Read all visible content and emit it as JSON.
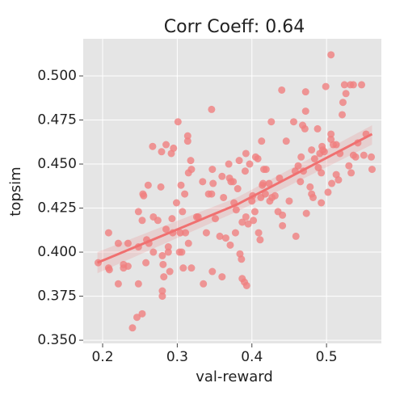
{
  "chart_data": {
    "type": "scatter",
    "title": "Corr Coeff: 0.64",
    "x_label": "val-reward",
    "y_label": "topsim",
    "xlim": [
      0.174,
      0.5735
    ],
    "ylim": [
      0.3482,
      0.5211
    ],
    "xticks": [
      0.2,
      0.3,
      0.4,
      0.5
    ],
    "yticks": [
      {
        "value": 0.35,
        "label": "0.350"
      },
      {
        "value": 0.375,
        "label": "0.375"
      },
      {
        "value": 0.4,
        "label": "0.400"
      },
      {
        "value": 0.425,
        "label": "0.425"
      },
      {
        "value": 0.45,
        "label": "0.450"
      },
      {
        "value": 0.475,
        "label": "0.475"
      },
      {
        "value": 0.5,
        "label": "0.500"
      }
    ],
    "grid": true,
    "background": "#e5e5e5",
    "color": "#f08080",
    "x": [
      0.194,
      0.208,
      0.208,
      0.209,
      0.221,
      0.221,
      0.228,
      0.228,
      0.234,
      0.234,
      0.24,
      0.246,
      0.253,
      0.248,
      0.248,
      0.248,
      0.253,
      0.254,
      0.255,
      0.258,
      0.259,
      0.261,
      0.262,
      0.267,
      0.268,
      0.268,
      0.274,
      0.278,
      0.279,
      0.28,
      0.28,
      0.28,
      0.281,
      0.282,
      0.285,
      0.285,
      0.288,
      0.288,
      0.29,
      0.292,
      0.293,
      0.295,
      0.294,
      0.299,
      0.301,
      0.303,
      0.304,
      0.305,
      0.306,
      0.307,
      0.308,
      0.31,
      0.311,
      0.314,
      0.314,
      0.315,
      0.315,
      0.318,
      0.319,
      0.319,
      0.326,
      0.328,
      0.334,
      0.335,
      0.339,
      0.342,
      0.346,
      0.346,
      0.347,
      0.347,
      0.348,
      0.351,
      0.357,
      0.36,
      0.36,
      0.362,
      0.365,
      0.369,
      0.37,
      0.371,
      0.372,
      0.375,
      0.376,
      0.378,
      0.379,
      0.381,
      0.383,
      0.384,
      0.386,
      0.387,
      0.387,
      0.39,
      0.391,
      0.392,
      0.392,
      0.393,
      0.395,
      0.397,
      0.4,
      0.401,
      0.402,
      0.404,
      0.405,
      0.408,
      0.409,
      0.411,
      0.412,
      0.413,
      0.414,
      0.415,
      0.416,
      0.418,
      0.419,
      0.423,
      0.424,
      0.426,
      0.427,
      0.431,
      0.435,
      0.437,
      0.44,
      0.441,
      0.441,
      0.446,
      0.45,
      0.456,
      0.458,
      0.459,
      0.462,
      0.465,
      0.466,
      0.468,
      0.469,
      0.471,
      0.472,
      0.472,
      0.473,
      0.478,
      0.48,
      0.48,
      0.482,
      0.484,
      0.488,
      0.489,
      0.491,
      0.493,
      0.493,
      0.494,
      0.495,
      0.497,
      0.499,
      0.502,
      0.506,
      0.506,
      0.507,
      0.509,
      0.513,
      0.513,
      0.516,
      0.518,
      0.521,
      0.522,
      0.524,
      0.526,
      0.53,
      0.532,
      0.533,
      0.536,
      0.536,
      0.539,
      0.542,
      0.547,
      0.55,
      0.553,
      0.56,
      0.561,
      0.506
    ],
    "values": [
      0.394,
      0.411,
      0.391,
      0.39,
      0.405,
      0.382,
      0.393,
      0.391,
      0.392,
      0.405,
      0.357,
      0.363,
      0.365,
      0.382,
      0.403,
      0.423,
      0.418,
      0.433,
      0.432,
      0.394,
      0.407,
      0.438,
      0.405,
      0.46,
      0.42,
      0.4,
      0.418,
      0.437,
      0.457,
      0.398,
      0.378,
      0.375,
      0.393,
      0.386,
      0.413,
      0.461,
      0.403,
      0.4,
      0.389,
      0.456,
      0.419,
      0.459,
      0.411,
      0.428,
      0.474,
      0.4,
      0.411,
      0.438,
      0.4,
      0.423,
      0.391,
      0.433,
      0.411,
      0.466,
      0.463,
      0.445,
      0.405,
      0.452,
      0.391,
      0.447,
      0.42,
      0.42,
      0.44,
      0.382,
      0.411,
      0.433,
      0.481,
      0.433,
      0.389,
      0.447,
      0.439,
      0.419,
      0.409,
      0.443,
      0.386,
      0.431,
      0.408,
      0.45,
      0.442,
      0.404,
      0.44,
      0.44,
      0.428,
      0.411,
      0.424,
      0.436,
      0.452,
      0.399,
      0.396,
      0.417,
      0.385,
      0.383,
      0.446,
      0.456,
      0.42,
      0.381,
      0.416,
      0.45,
      0.429,
      0.432,
      0.418,
      0.423,
      0.454,
      0.453,
      0.411,
      0.407,
      0.431,
      0.463,
      0.438,
      0.439,
      0.447,
      0.433,
      0.447,
      0.439,
      0.429,
      0.474,
      0.431,
      0.432,
      0.423,
      0.442,
      0.492,
      0.421,
      0.415,
      0.463,
      0.429,
      0.474,
      0.446,
      0.409,
      0.449,
      0.44,
      0.454,
      0.472,
      0.446,
      0.47,
      0.491,
      0.48,
      0.422,
      0.437,
      0.458,
      0.433,
      0.431,
      0.453,
      0.47,
      0.448,
      0.456,
      0.445,
      0.428,
      0.46,
      0.458,
      0.457,
      0.494,
      0.434,
      0.467,
      0.464,
      0.439,
      0.461,
      0.461,
      0.444,
      0.441,
      0.456,
      0.478,
      0.485,
      0.495,
      0.49,
      0.449,
      0.495,
      0.445,
      0.495,
      0.455,
      0.454,
      0.462,
      0.495,
      0.455,
      0.467,
      0.454,
      0.447,
      0.512
    ],
    "regression": {
      "color": "#f07070",
      "x": [
        0.193,
        0.38,
        0.561
      ],
      "values": [
        0.394,
        0.427,
        0.467
      ],
      "lower": [
        0.388,
        0.423,
        0.461
      ],
      "upper": [
        0.4,
        0.431,
        0.472
      ]
    }
  }
}
